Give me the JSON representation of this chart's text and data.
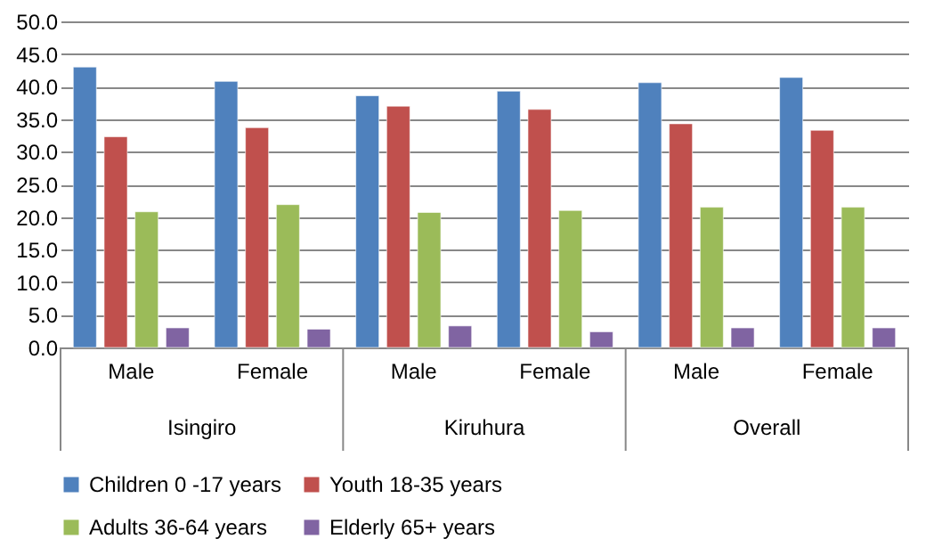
{
  "chart_data": {
    "type": "bar",
    "categories": [
      "Male",
      "Female",
      "Male",
      "Female",
      "Male",
      "Female"
    ],
    "annotations": [
      "Isingiro",
      "Kiruhura",
      "Overall"
    ],
    "series": [
      {
        "name": "Children 0 -17 years",
        "color": "#4f81bd",
        "values": [
          43.0,
          40.8,
          38.6,
          39.3,
          40.6,
          41.4
        ]
      },
      {
        "name": "Youth 18-35 years",
        "color": "#c0504d",
        "values": [
          32.3,
          33.7,
          37.0,
          36.5,
          34.3,
          33.3
        ]
      },
      {
        "name": "Adults 36-64 years",
        "color": "#9bbb59",
        "values": [
          20.8,
          21.9,
          20.7,
          21.0,
          21.5,
          21.5
        ]
      },
      {
        "name": "Elderly 65+ years",
        "color": "#8064a2",
        "values": [
          3.0,
          2.8,
          3.3,
          2.4,
          3.0,
          3.0
        ]
      }
    ],
    "ylim": [
      0,
      50
    ],
    "yticks": [
      {
        "value": 0,
        "label": "0.0"
      },
      {
        "value": 5,
        "label": "5.0"
      },
      {
        "value": 10,
        "label": "10.0"
      },
      {
        "value": 15,
        "label": "15.0"
      },
      {
        "value": 20,
        "label": "20.0"
      },
      {
        "value": 25,
        "label": "25.0"
      },
      {
        "value": 30,
        "label": "30.0"
      },
      {
        "value": 35,
        "label": "35.0"
      },
      {
        "value": 40,
        "label": "40.0"
      },
      {
        "value": 45,
        "label": "45.0"
      },
      {
        "value": 50,
        "label": "50.0"
      }
    ],
    "grid": "y",
    "legend": "bottom"
  }
}
